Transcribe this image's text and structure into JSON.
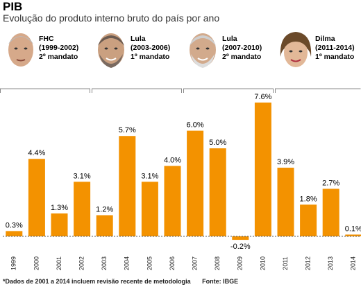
{
  "header": {
    "title": "PIB",
    "subtitle": "Evolução do produto interno bruto do país por ano"
  },
  "periods": [
    {
      "name": "FHC",
      "years": "(1999-2002)",
      "term": "2º mandato"
    },
    {
      "name": "Lula",
      "years": "(2003-2006)",
      "term": "1º mandato"
    },
    {
      "name": "Lula",
      "years": "(2007-2010)",
      "term": "2º mandato"
    },
    {
      "name": "Dilma",
      "years": "(2011-2014)",
      "term": "1º mandato"
    }
  ],
  "colors": {
    "bar": "#f39200",
    "bracket": "#888888",
    "baseline": "#555555"
  },
  "chart_data": {
    "type": "bar",
    "categories": [
      "1999",
      "2000",
      "2001",
      "2002",
      "2003",
      "2004",
      "2005",
      "2006",
      "2007",
      "2008",
      "2009",
      "2010",
      "2011",
      "2012",
      "2013",
      "2014"
    ],
    "values": [
      0.3,
      4.4,
      1.3,
      3.1,
      1.2,
      5.7,
      3.1,
      4.0,
      6.0,
      5.0,
      -0.2,
      7.6,
      3.9,
      1.8,
      2.7,
      0.1
    ],
    "labels": [
      "0.3%",
      "4.4%",
      "1.3%",
      "3.1%",
      "1.2%",
      "5.7%",
      "3.1%",
      "4.0%",
      "6.0%",
      "5.0%",
      "-0.2%",
      "7.6%",
      "3.9%",
      "1.8%",
      "2.7%",
      "0.1%"
    ],
    "title": "PIB",
    "xlabel": "",
    "ylabel": "",
    "grid": false,
    "legend": "none"
  },
  "footnote": {
    "note": "*Dados de 2001 a 2014 incluem revisão recente de metodologia",
    "source": "Fonte: IBGE"
  }
}
